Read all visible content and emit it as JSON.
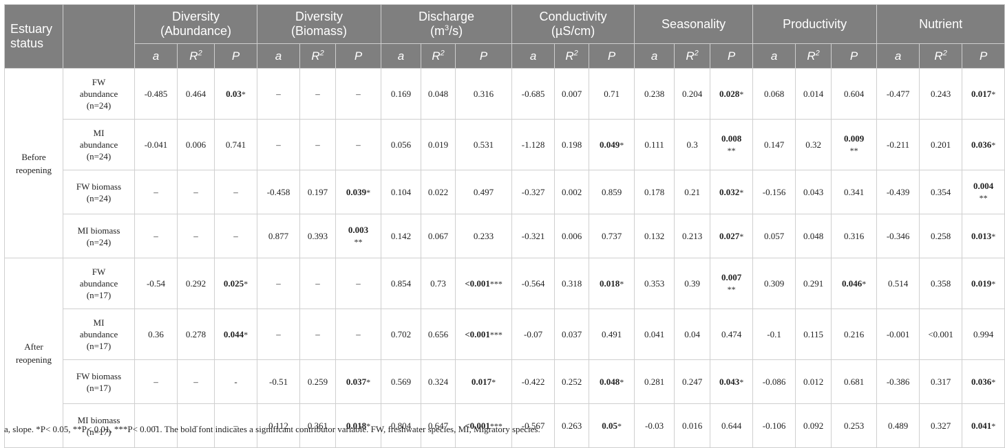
{
  "header": {
    "status_label": "Estuary status",
    "groups": [
      {
        "line1": "Diversity",
        "line2": "(Abundance)"
      },
      {
        "line1": "Diversity",
        "line2": "(Biomass)"
      },
      {
        "line1": "Discharge",
        "line2_pre": "(m",
        "line2_sup": "3",
        "line2_post": "/s)"
      },
      {
        "line1": "Conductivity",
        "line2": "(µS/cm)"
      },
      {
        "line1": "Seasonality",
        "line2": ""
      },
      {
        "line1": "Productivity",
        "line2": ""
      },
      {
        "line1": "Nutrient",
        "line2": ""
      }
    ],
    "sub": {
      "a": "a",
      "r": "R",
      "r_sup": "2",
      "p": "P"
    }
  },
  "groups": [
    {
      "status": "Before reopening",
      "rows": [
        {
          "var_l1": "FW",
          "var_l2": "abundance",
          "var_l3": "(n=24)",
          "cells": [
            {
              "v": "-0.485"
            },
            {
              "v": "0.464"
            },
            {
              "v": "0.03",
              "b": true,
              "s": "*"
            },
            {
              "v": "–"
            },
            {
              "v": "–"
            },
            {
              "v": "–"
            },
            {
              "v": "0.169"
            },
            {
              "v": "0.048"
            },
            {
              "v": "0.316"
            },
            {
              "v": "-0.685"
            },
            {
              "v": "0.007"
            },
            {
              "v": "0.71"
            },
            {
              "v": "0.238"
            },
            {
              "v": "0.204"
            },
            {
              "v": "0.028",
              "b": true,
              "s": "*"
            },
            {
              "v": "0.068"
            },
            {
              "v": "0.014"
            },
            {
              "v": "0.604"
            },
            {
              "v": "-0.477"
            },
            {
              "v": "0.243"
            },
            {
              "v": "0.017",
              "b": true,
              "s": "*"
            }
          ]
        },
        {
          "var_l1": "MI",
          "var_l2": "abundance",
          "var_l3": "(n=24)",
          "cells": [
            {
              "v": "-0.041"
            },
            {
              "v": "0.006"
            },
            {
              "v": "0.741"
            },
            {
              "v": "–"
            },
            {
              "v": "–"
            },
            {
              "v": "–"
            },
            {
              "v": "0.056"
            },
            {
              "v": "0.019"
            },
            {
              "v": "0.531"
            },
            {
              "v": "-1.128"
            },
            {
              "v": "0.198"
            },
            {
              "v": "0.049",
              "b": true,
              "s": "*"
            },
            {
              "v": "0.111"
            },
            {
              "v": "0.3"
            },
            {
              "v": "0.008",
              "b": true,
              "s": "**",
              "wrap": true
            },
            {
              "v": "0.147"
            },
            {
              "v": "0.32"
            },
            {
              "v": "0.009",
              "b": true,
              "s": "**",
              "wrap": true
            },
            {
              "v": "-0.211"
            },
            {
              "v": "0.201"
            },
            {
              "v": "0.036",
              "b": true,
              "s": "*"
            }
          ]
        },
        {
          "var_l1": "FW biomass",
          "var_l2": "(n=24)",
          "cells": [
            {
              "v": "–"
            },
            {
              "v": "–"
            },
            {
              "v": "–"
            },
            {
              "v": "-0.458"
            },
            {
              "v": "0.197"
            },
            {
              "v": "0.039",
              "b": true,
              "s": "*"
            },
            {
              "v": "0.104"
            },
            {
              "v": "0.022"
            },
            {
              "v": "0.497"
            },
            {
              "v": "-0.327"
            },
            {
              "v": "0.002"
            },
            {
              "v": "0.859"
            },
            {
              "v": "0.178"
            },
            {
              "v": "0.21"
            },
            {
              "v": "0.032",
              "b": true,
              "s": "*"
            },
            {
              "v": "-0.156"
            },
            {
              "v": "0.043"
            },
            {
              "v": "0.341"
            },
            {
              "v": "-0.439"
            },
            {
              "v": "0.354"
            },
            {
              "v": "0.004",
              "b": true,
              "s": "**",
              "wrap": true
            }
          ]
        },
        {
          "var_l1": "MI biomass",
          "var_l2": "(n=24)",
          "cells": [
            {
              "v": "–"
            },
            {
              "v": "–"
            },
            {
              "v": "–"
            },
            {
              "v": "0.877"
            },
            {
              "v": "0.393"
            },
            {
              "v": "0.003",
              "b": true,
              "s": "**",
              "wrap": true
            },
            {
              "v": "0.142"
            },
            {
              "v": "0.067"
            },
            {
              "v": "0.233"
            },
            {
              "v": "-0.321"
            },
            {
              "v": "0.006"
            },
            {
              "v": "0.737"
            },
            {
              "v": "0.132"
            },
            {
              "v": "0.213"
            },
            {
              "v": "0.027",
              "b": true,
              "s": "*"
            },
            {
              "v": "0.057"
            },
            {
              "v": "0.048"
            },
            {
              "v": "0.316"
            },
            {
              "v": "-0.346"
            },
            {
              "v": "0.258"
            },
            {
              "v": "0.013",
              "b": true,
              "s": "*"
            }
          ]
        }
      ]
    },
    {
      "status": "After reopening",
      "rows": [
        {
          "var_l1": "FW",
          "var_l2": "abundance",
          "var_l3": "(n=17)",
          "cells": [
            {
              "v": "-0.54"
            },
            {
              "v": "0.292"
            },
            {
              "v": "0.025",
              "b": true,
              "s": "*"
            },
            {
              "v": "–"
            },
            {
              "v": "–"
            },
            {
              "v": "–"
            },
            {
              "v": "0.854"
            },
            {
              "v": "0.73"
            },
            {
              "v": "<0.001",
              "b": true,
              "s": "***"
            },
            {
              "v": "-0.564"
            },
            {
              "v": "0.318"
            },
            {
              "v": "0.018",
              "b": true,
              "s": "*"
            },
            {
              "v": "0.353"
            },
            {
              "v": "0.39"
            },
            {
              "v": "0.007",
              "b": true,
              "s": "**",
              "wrap": true
            },
            {
              "v": "0.309"
            },
            {
              "v": "0.291"
            },
            {
              "v": "0.046",
              "b": true,
              "s": "*"
            },
            {
              "v": "0.514"
            },
            {
              "v": "0.358"
            },
            {
              "v": "0.019",
              "b": true,
              "s": "*"
            }
          ]
        },
        {
          "var_l1": "MI",
          "var_l2": "abundance",
          "var_l3": "(n=17)",
          "cells": [
            {
              "v": "0.36"
            },
            {
              "v": "0.278"
            },
            {
              "v": "0.044",
              "b": true,
              "s": "*"
            },
            {
              "v": "–"
            },
            {
              "v": "–"
            },
            {
              "v": "–"
            },
            {
              "v": "0.702"
            },
            {
              "v": "0.656"
            },
            {
              "v": "<0.001",
              "b": true,
              "s": "***"
            },
            {
              "v": "-0.07"
            },
            {
              "v": "0.037"
            },
            {
              "v": "0.491"
            },
            {
              "v": "0.041"
            },
            {
              "v": "0.04"
            },
            {
              "v": "0.474"
            },
            {
              "v": "-0.1"
            },
            {
              "v": "0.115"
            },
            {
              "v": "0.216"
            },
            {
              "v": "-0.001"
            },
            {
              "v": "<0.001"
            },
            {
              "v": "0.994"
            }
          ]
        },
        {
          "var_l1": "FW biomass",
          "var_l2": "(n=17)",
          "cells": [
            {
              "v": "–"
            },
            {
              "v": "–"
            },
            {
              "v": "-"
            },
            {
              "v": "-0.51"
            },
            {
              "v": "0.259"
            },
            {
              "v": "0.037",
              "b": true,
              "s": "*"
            },
            {
              "v": "0.569"
            },
            {
              "v": "0.324"
            },
            {
              "v": "0.017",
              "b": true,
              "s": "*"
            },
            {
              "v": "-0.422"
            },
            {
              "v": "0.252"
            },
            {
              "v": "0.048",
              "b": true,
              "s": "*"
            },
            {
              "v": "0.281"
            },
            {
              "v": "0.247"
            },
            {
              "v": "0.043",
              "b": true,
              "s": "*"
            },
            {
              "v": "-0.086"
            },
            {
              "v": "0.012"
            },
            {
              "v": "0.681"
            },
            {
              "v": "-0.386"
            },
            {
              "v": "0.317"
            },
            {
              "v": "0.036",
              "b": true,
              "s": "*"
            }
          ]
        },
        {
          "var_l1": "MI biomass",
          "var_l2": "(n=17)",
          "cells": [
            {
              "v": "–"
            },
            {
              "v": "–"
            },
            {
              "v": "–"
            },
            {
              "v": "0.112"
            },
            {
              "v": "0.361"
            },
            {
              "v": "0.018",
              "b": true,
              "s": "*"
            },
            {
              "v": "0.804"
            },
            {
              "v": "0.647"
            },
            {
              "v": "<0.001",
              "b": true,
              "s": "***"
            },
            {
              "v": "-0.567"
            },
            {
              "v": "0.263"
            },
            {
              "v": "0.05",
              "b": true,
              "s": "*"
            },
            {
              "v": "-0.03"
            },
            {
              "v": "0.016"
            },
            {
              "v": "0.644"
            },
            {
              "v": "-0.106"
            },
            {
              "v": "0.092"
            },
            {
              "v": "0.253"
            },
            {
              "v": "0.489"
            },
            {
              "v": "0.327"
            },
            {
              "v": "0.041",
              "b": true,
              "s": "*"
            }
          ]
        }
      ]
    }
  ],
  "footnote": "a, slope. *P< 0.05, **P< 0.01, ***P< 0.001. The bold font indicates a significant contributor variable. FW, freshwater species, MI, Migratory species."
}
